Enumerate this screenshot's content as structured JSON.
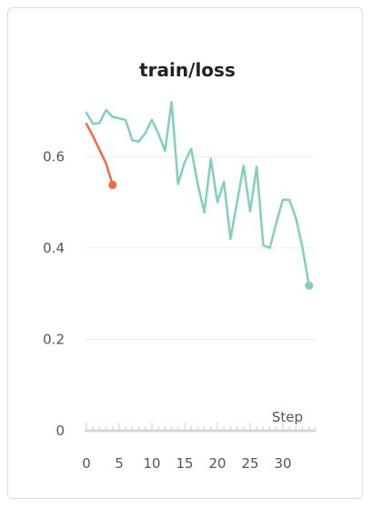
{
  "chart_data": {
    "type": "line",
    "title": "train/loss",
    "xlabel": "Step",
    "ylabel": "",
    "xlim": [
      0,
      35
    ],
    "ylim": [
      0,
      0.74
    ],
    "x_ticks": [
      0,
      5,
      10,
      15,
      20,
      25,
      30
    ],
    "y_ticks": [
      0,
      0.2,
      0.4,
      0.6
    ],
    "grid": true,
    "series": [
      {
        "color": "#f26b3a",
        "x": [
          0,
          1,
          2,
          3,
          4
        ],
        "y": [
          0.672,
          0.645,
          0.615,
          0.585,
          0.538
        ]
      },
      {
        "color": "#7fd1b9",
        "x": [
          0,
          1,
          2,
          3,
          4,
          5,
          6,
          7,
          8,
          9,
          10,
          11,
          12,
          13,
          14,
          15,
          16,
          17,
          18,
          19,
          20,
          21,
          22,
          23,
          24,
          25,
          26,
          27,
          28,
          29,
          30,
          31,
          32,
          33,
          34
        ],
        "y": [
          0.696,
          0.672,
          0.674,
          0.702,
          0.687,
          0.684,
          0.68,
          0.636,
          0.633,
          0.652,
          0.681,
          0.65,
          0.613,
          0.72,
          0.54,
          0.588,
          0.617,
          0.54,
          0.478,
          0.595,
          0.5,
          0.545,
          0.42,
          0.5,
          0.58,
          0.48,
          0.578,
          0.406,
          0.4,
          0.455,
          0.506,
          0.505,
          0.465,
          0.4,
          0.318
        ]
      }
    ]
  }
}
